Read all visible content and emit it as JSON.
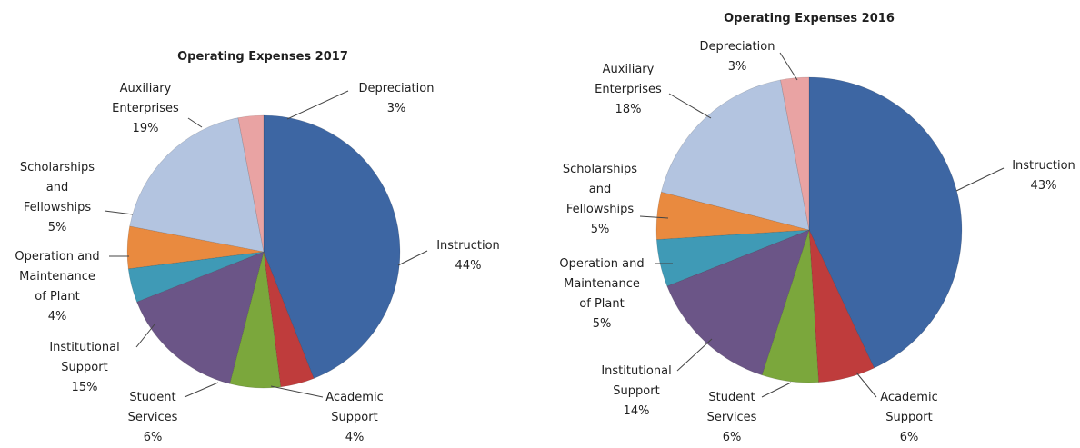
{
  "chart_data": [
    {
      "type": "pie",
      "title": "Operating Expenses 2017",
      "slices": [
        {
          "label_lines": [
            "Instruction",
            "44%"
          ],
          "value": 44,
          "color": "#3d66a3"
        },
        {
          "label_lines": [
            "Academic",
            "Support",
            "4%"
          ],
          "value": 4,
          "color": "#bf3c3c"
        },
        {
          "label_lines": [
            "Student",
            "Services",
            "6%"
          ],
          "value": 6,
          "color": "#7ba73c"
        },
        {
          "label_lines": [
            "Institutional",
            "Support",
            "15%"
          ],
          "value": 15,
          "color": "#6b5587"
        },
        {
          "label_lines": [
            "Operation and",
            "Maintenance",
            "of Plant",
            "4%"
          ],
          "value": 4,
          "color": "#3f9ab6"
        },
        {
          "label_lines": [
            "Scholarships",
            "and",
            "Fellowships",
            "5%"
          ],
          "value": 5,
          "color": "#e98a3f"
        },
        {
          "label_lines": [
            "Auxiliary",
            "Enterprises",
            "19%"
          ],
          "value": 19,
          "color": "#b3c4e0"
        },
        {
          "label_lines": [
            "Depreciation",
            "3%"
          ],
          "value": 3,
          "color": "#e9a3a3"
        }
      ]
    },
    {
      "type": "pie",
      "title": "Operating Expenses 2016",
      "slices": [
        {
          "label_lines": [
            "Instruction",
            "43%"
          ],
          "value": 43,
          "color": "#3d66a3"
        },
        {
          "label_lines": [
            "Academic",
            "Support",
            "6%"
          ],
          "value": 6,
          "color": "#bf3c3c"
        },
        {
          "label_lines": [
            "Student",
            "Services",
            "6%"
          ],
          "value": 6,
          "color": "#7ba73c"
        },
        {
          "label_lines": [
            "Institutional",
            "Support",
            "14%"
          ],
          "value": 14,
          "color": "#6b5587"
        },
        {
          "label_lines": [
            "Operation and",
            "Maintenance",
            "of Plant",
            "5%"
          ],
          "value": 5,
          "color": "#3f9ab6"
        },
        {
          "label_lines": [
            "Scholarships",
            "and",
            "Fellowships",
            "5%"
          ],
          "value": 5,
          "color": "#e98a3f"
        },
        {
          "label_lines": [
            "Auxiliary",
            "Enterprises",
            "18%"
          ],
          "value": 18,
          "color": "#b3c4e0"
        },
        {
          "label_lines": [
            "Depreciation",
            "3%"
          ],
          "value": 3,
          "color": "#e9a3a3"
        }
      ]
    }
  ]
}
